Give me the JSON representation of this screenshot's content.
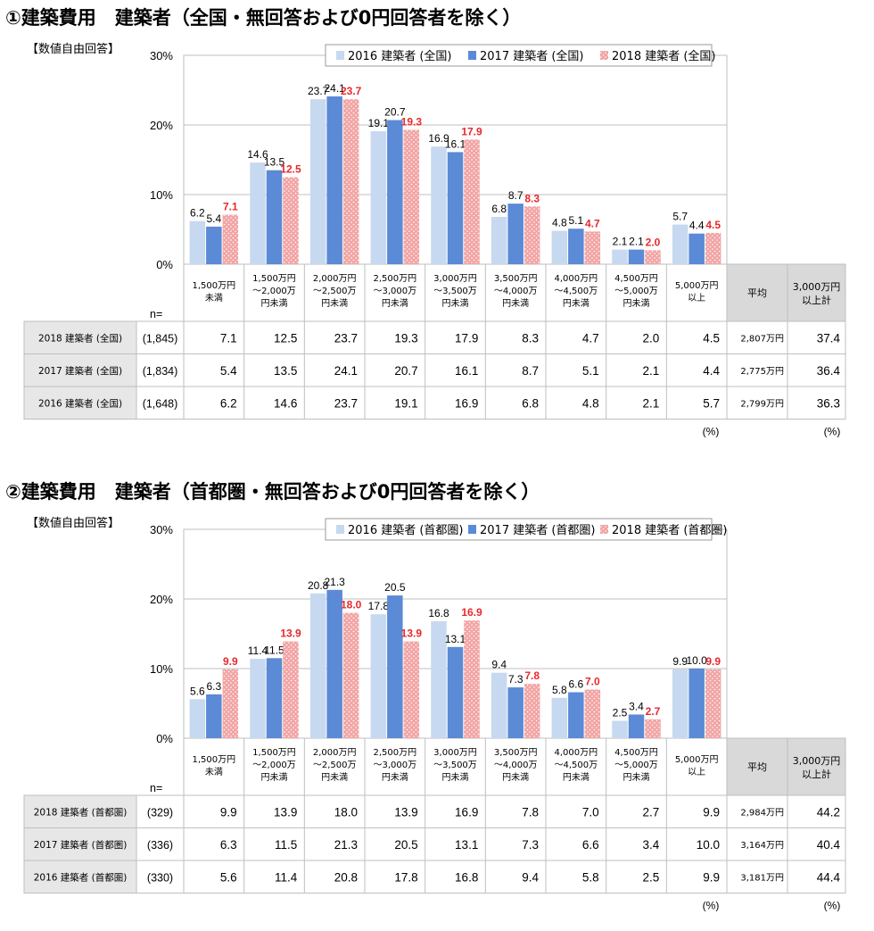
{
  "colors": {
    "s2016": "#c7d9f0",
    "s2017": "#5b8ad6",
    "s2018": "#f2a4a4",
    "s2018_dot": "#ffffff",
    "highlight_label": "#e8282b",
    "grid": "#bfbfbf",
    "header_gray": "#d9d9d9",
    "row_gray": "#e7e7e7"
  },
  "chart_data": [
    {
      "type": "bar",
      "title": "①建築費用　建築者（全国・無回答および0円回答者を除く）",
      "subtitle": "【数値自由回答】",
      "yticks": [
        "0%",
        "10%",
        "20%",
        "30%"
      ],
      "ylim": [
        0,
        30
      ],
      "grid": true,
      "legend_position": "top-right",
      "categories": [
        [
          "1,500万円",
          "未満"
        ],
        [
          "1,500万円",
          "～2,000万",
          "円未満"
        ],
        [
          "2,000万円",
          "～2,500万",
          "円未満"
        ],
        [
          "2,500万円",
          "～3,000万",
          "円未満"
        ],
        [
          "3,000万円",
          "～3,500万",
          "円未満"
        ],
        [
          "3,500万円",
          "～4,000万",
          "円未満"
        ],
        [
          "4,000万円",
          "～4,500万",
          "円未満"
        ],
        [
          "4,500万円",
          "～5,000万",
          "円未満"
        ],
        [
          "5,000万円",
          "以上"
        ]
      ],
      "series": [
        {
          "name": "2016 建築者 (全国)",
          "key": "s2016",
          "values": [
            6.2,
            14.6,
            23.7,
            19.1,
            16.9,
            6.8,
            4.8,
            2.1,
            5.7
          ]
        },
        {
          "name": "2017 建築者 (全国)",
          "key": "s2017",
          "values": [
            5.4,
            13.5,
            24.1,
            20.7,
            16.1,
            8.7,
            5.1,
            2.1,
            4.4
          ]
        },
        {
          "name": "2018 建築者 (全国)",
          "key": "s2018",
          "values": [
            7.1,
            12.5,
            23.7,
            19.3,
            17.9,
            8.3,
            4.7,
            2.0,
            4.5
          ]
        }
      ],
      "table": {
        "n_label": "n=",
        "avg_header": "平均",
        "over_header": [
          "3,000万円",
          "以上計"
        ],
        "pct_unit": "(%)",
        "rows": [
          {
            "label": "2018 建築者 (全国)",
            "n": "(1,845)",
            "values": [
              "7.1",
              "12.5",
              "23.7",
              "19.3",
              "17.9",
              "8.3",
              "4.7",
              "2.0",
              "4.5"
            ],
            "avg": "2,807万円",
            "over": "37.4"
          },
          {
            "label": "2017 建築者 (全国)",
            "n": "(1,834)",
            "values": [
              "5.4",
              "13.5",
              "24.1",
              "20.7",
              "16.1",
              "8.7",
              "5.1",
              "2.1",
              "4.4"
            ],
            "avg": "2,775万円",
            "over": "36.4"
          },
          {
            "label": "2016 建築者 (全国)",
            "n": "(1,648)",
            "values": [
              "6.2",
              "14.6",
              "23.7",
              "19.1",
              "16.9",
              "6.8",
              "4.8",
              "2.1",
              "5.7"
            ],
            "avg": "2,799万円",
            "over": "36.3"
          }
        ]
      }
    },
    {
      "type": "bar",
      "title": "②建築費用　建築者（首都圏・無回答および0円回答者を除く）",
      "subtitle": "【数値自由回答】",
      "yticks": [
        "0%",
        "10%",
        "20%",
        "30%"
      ],
      "ylim": [
        0,
        30
      ],
      "grid": true,
      "legend_position": "top-right",
      "categories": [
        [
          "1,500万円",
          "未満"
        ],
        [
          "1,500万円",
          "～2,000万",
          "円未満"
        ],
        [
          "2,000万円",
          "～2,500万",
          "円未満"
        ],
        [
          "2,500万円",
          "～3,000万",
          "円未満"
        ],
        [
          "3,000万円",
          "～3,500万",
          "円未満"
        ],
        [
          "3,500万円",
          "～4,000万",
          "円未満"
        ],
        [
          "4,000万円",
          "～4,500万",
          "円未満"
        ],
        [
          "4,500万円",
          "～5,000万",
          "円未満"
        ],
        [
          "5,000万円",
          "以上"
        ]
      ],
      "series": [
        {
          "name": "2016 建築者 (首都圏)",
          "key": "s2016",
          "values": [
            5.6,
            11.4,
            20.8,
            17.8,
            16.8,
            9.4,
            5.8,
            2.5,
            9.9
          ]
        },
        {
          "name": "2017 建築者 (首都圏)",
          "key": "s2017",
          "values": [
            6.3,
            11.5,
            21.3,
            20.5,
            13.1,
            7.3,
            6.6,
            3.4,
            10.0
          ]
        },
        {
          "name": "2018 建築者 (首都圏)",
          "key": "s2018",
          "values": [
            9.9,
            13.9,
            18.0,
            13.9,
            16.9,
            7.8,
            7.0,
            2.7,
            9.9
          ]
        }
      ],
      "table": {
        "n_label": "n=",
        "avg_header": "平均",
        "over_header": [
          "3,000万円",
          "以上計"
        ],
        "pct_unit": "(%)",
        "rows": [
          {
            "label": "2018 建築者 (首都圏)",
            "n": "(329)",
            "values": [
              "9.9",
              "13.9",
              "18.0",
              "13.9",
              "16.9",
              "7.8",
              "7.0",
              "2.7",
              "9.9"
            ],
            "avg": "2,984万円",
            "over": "44.2"
          },
          {
            "label": "2017 建築者 (首都圏)",
            "n": "(336)",
            "values": [
              "6.3",
              "11.5",
              "21.3",
              "20.5",
              "13.1",
              "7.3",
              "6.6",
              "3.4",
              "10.0"
            ],
            "avg": "3,164万円",
            "over": "40.4"
          },
          {
            "label": "2016 建築者 (首都圏)",
            "n": "(330)",
            "values": [
              "5.6",
              "11.4",
              "20.8",
              "17.8",
              "16.8",
              "9.4",
              "5.8",
              "2.5",
              "9.9"
            ],
            "avg": "3,181万円",
            "over": "44.4"
          }
        ]
      }
    }
  ]
}
